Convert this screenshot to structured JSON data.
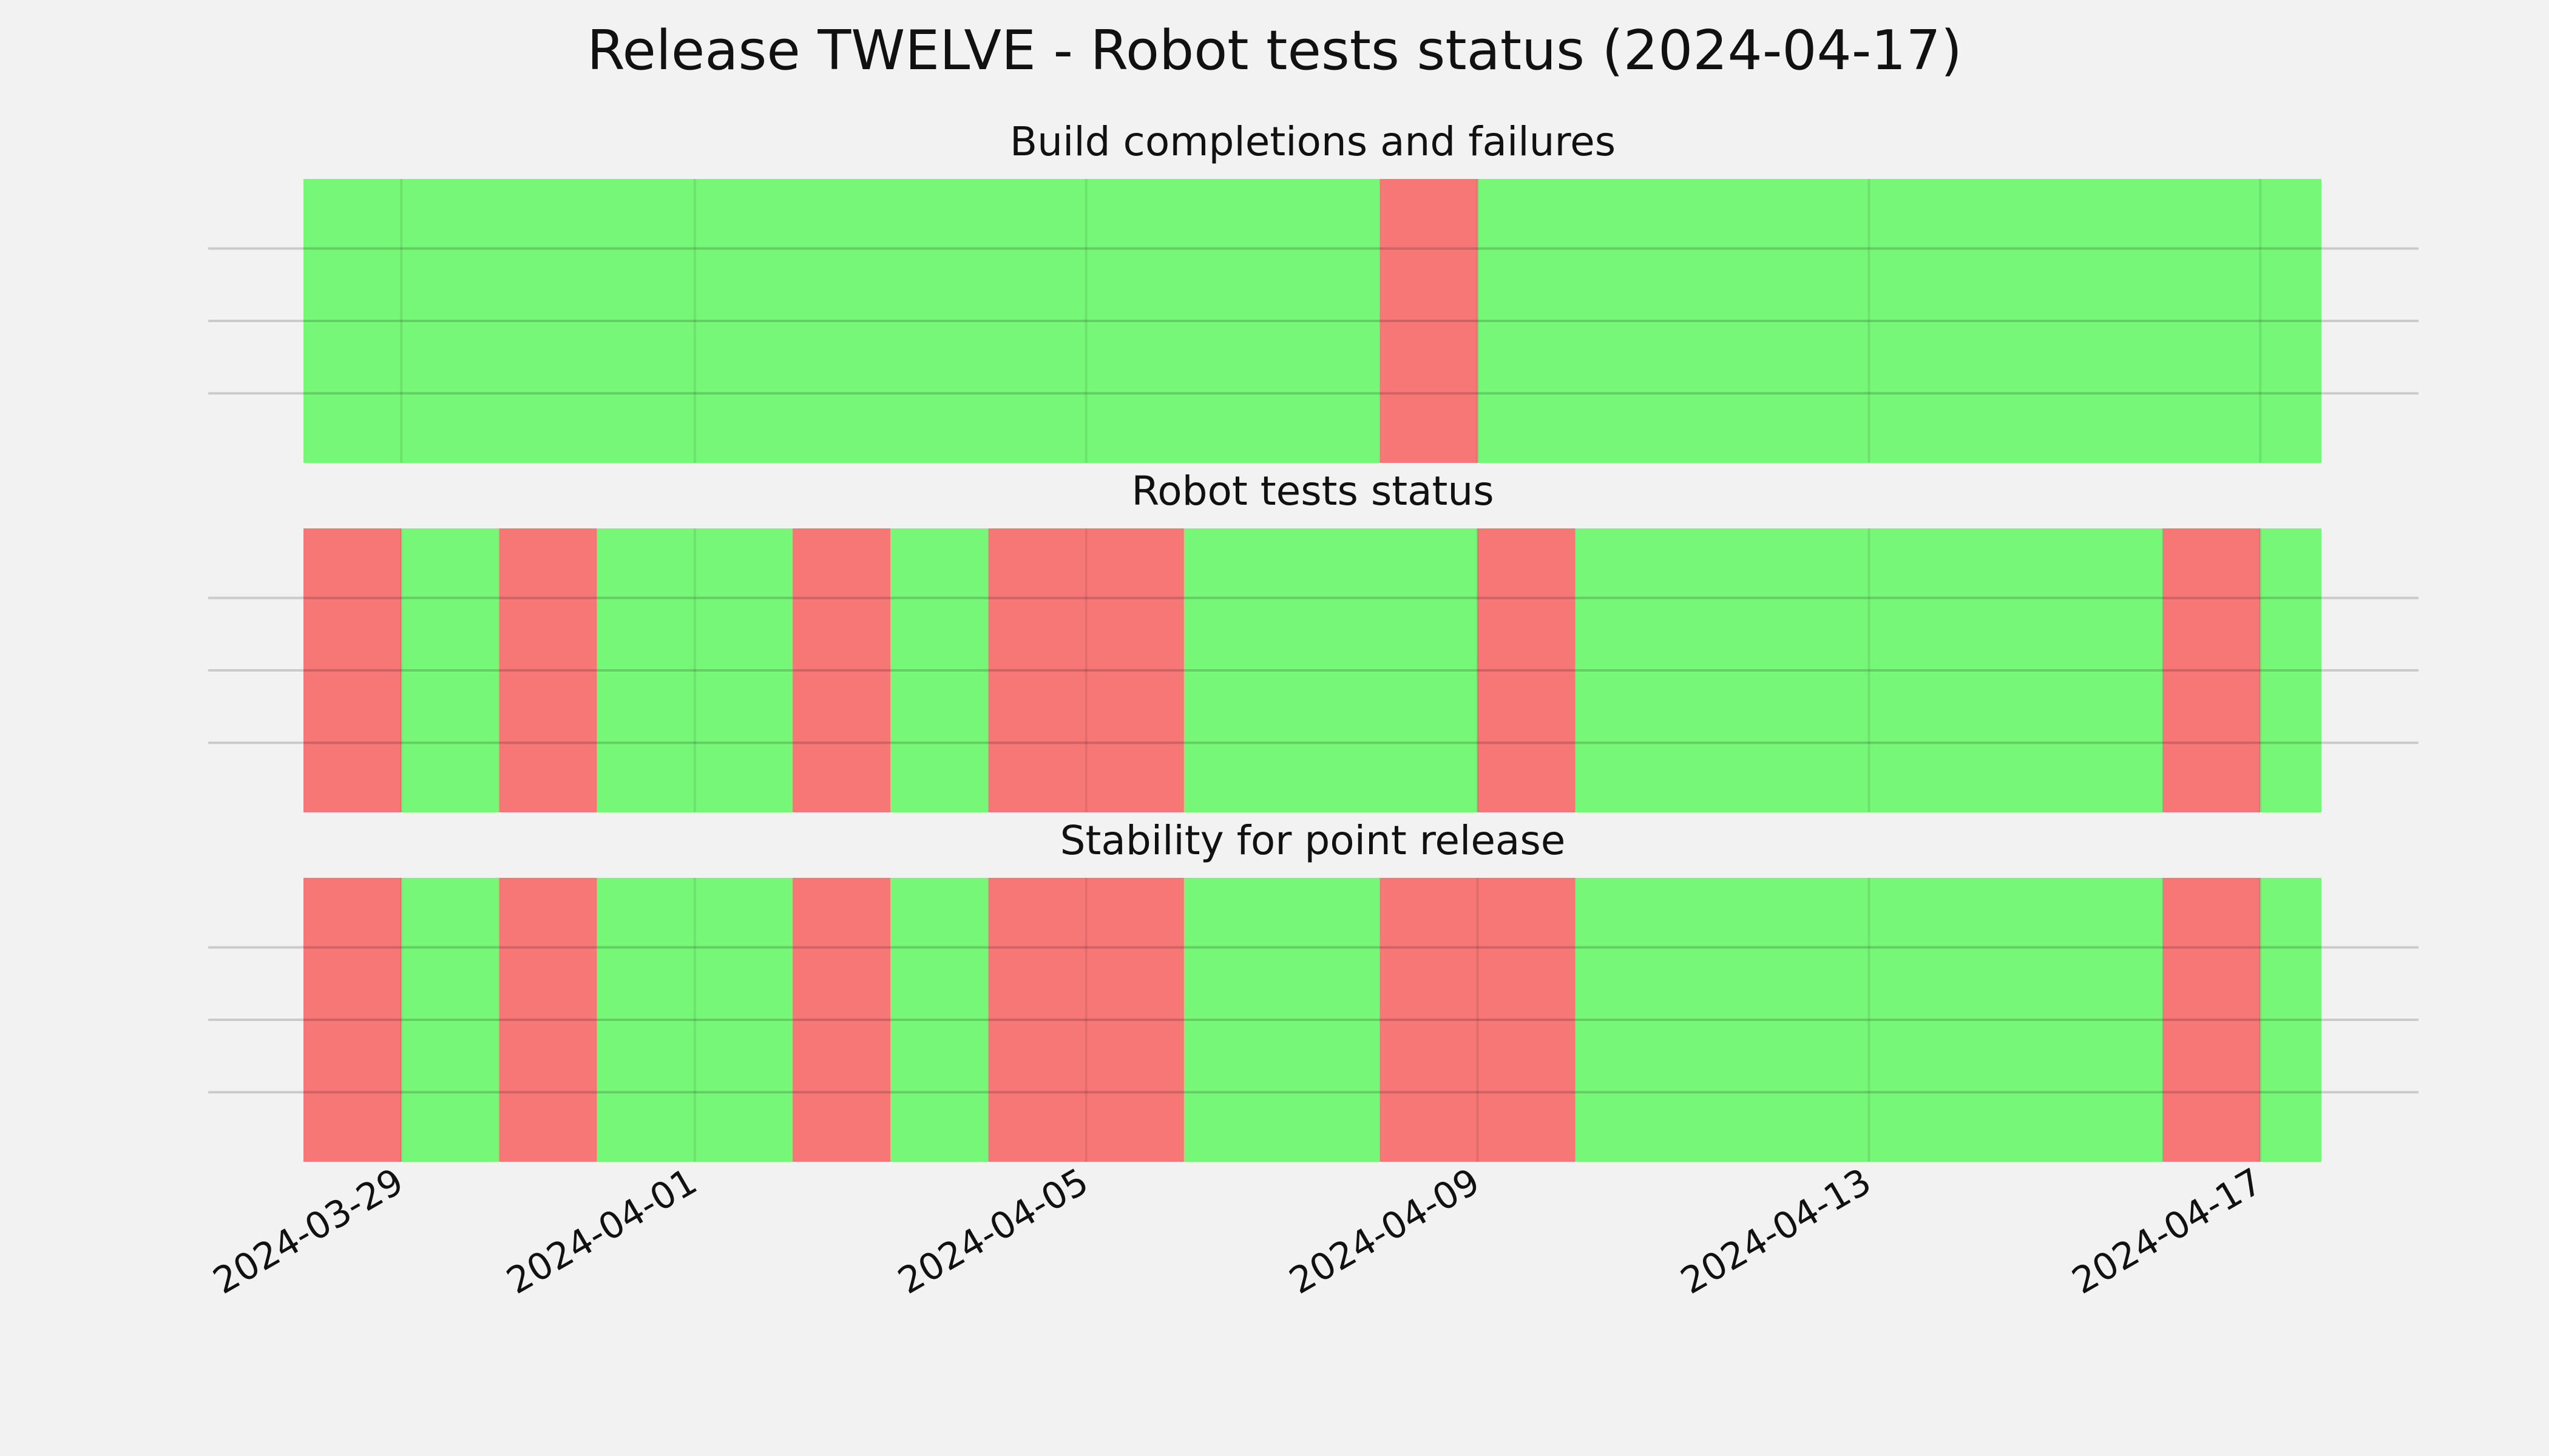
{
  "chart_data": {
    "type": "timeline",
    "title": "Release TWELVE - Robot tests status (2024-04-17)",
    "colors": {
      "pass": "#77f777",
      "fail": "#f77777",
      "background": "#f2f2f2"
    },
    "x_range": [
      "2024-03-28",
      "2024-04-17T15:00"
    ],
    "x_ticks": [
      "2024-03-29",
      "2024-04-01",
      "2024-04-05",
      "2024-04-09",
      "2024-04-13",
      "2024-04-17"
    ],
    "grid": true,
    "panels": [
      {
        "title": "Build completions and failures",
        "segments": [
          {
            "start": "2024-03-28",
            "end": "2024-04-08",
            "status": "pass"
          },
          {
            "start": "2024-04-08",
            "end": "2024-04-09",
            "status": "fail"
          },
          {
            "start": "2024-04-09",
            "end": "2024-04-17T15:00",
            "status": "pass"
          }
        ]
      },
      {
        "title": "Robot tests status",
        "segments": [
          {
            "start": "2024-03-28",
            "end": "2024-03-29",
            "status": "fail"
          },
          {
            "start": "2024-03-29",
            "end": "2024-03-30",
            "status": "pass"
          },
          {
            "start": "2024-03-30",
            "end": "2024-03-31",
            "status": "fail"
          },
          {
            "start": "2024-03-31",
            "end": "2024-04-02",
            "status": "pass"
          },
          {
            "start": "2024-04-02",
            "end": "2024-04-03",
            "status": "fail"
          },
          {
            "start": "2024-04-03",
            "end": "2024-04-04",
            "status": "pass"
          },
          {
            "start": "2024-04-04",
            "end": "2024-04-06",
            "status": "fail"
          },
          {
            "start": "2024-04-06",
            "end": "2024-04-09",
            "status": "pass"
          },
          {
            "start": "2024-04-09",
            "end": "2024-04-10",
            "status": "fail"
          },
          {
            "start": "2024-04-10",
            "end": "2024-04-16",
            "status": "pass"
          },
          {
            "start": "2024-04-16",
            "end": "2024-04-17",
            "status": "fail"
          },
          {
            "start": "2024-04-17",
            "end": "2024-04-17T15:00",
            "status": "pass"
          }
        ]
      },
      {
        "title": "Stability for point release",
        "segments": [
          {
            "start": "2024-03-28",
            "end": "2024-03-29",
            "status": "fail"
          },
          {
            "start": "2024-03-29",
            "end": "2024-03-30",
            "status": "pass"
          },
          {
            "start": "2024-03-30",
            "end": "2024-03-31",
            "status": "fail"
          },
          {
            "start": "2024-03-31",
            "end": "2024-04-02",
            "status": "pass"
          },
          {
            "start": "2024-04-02",
            "end": "2024-04-03",
            "status": "fail"
          },
          {
            "start": "2024-04-03",
            "end": "2024-04-04",
            "status": "pass"
          },
          {
            "start": "2024-04-04",
            "end": "2024-04-06",
            "status": "fail"
          },
          {
            "start": "2024-04-06",
            "end": "2024-04-08",
            "status": "pass"
          },
          {
            "start": "2024-04-08",
            "end": "2024-04-10",
            "status": "fail"
          },
          {
            "start": "2024-04-10",
            "end": "2024-04-16",
            "status": "pass"
          },
          {
            "start": "2024-04-16",
            "end": "2024-04-17",
            "status": "fail"
          },
          {
            "start": "2024-04-17",
            "end": "2024-04-17T15:00",
            "status": "pass"
          }
        ]
      }
    ]
  }
}
